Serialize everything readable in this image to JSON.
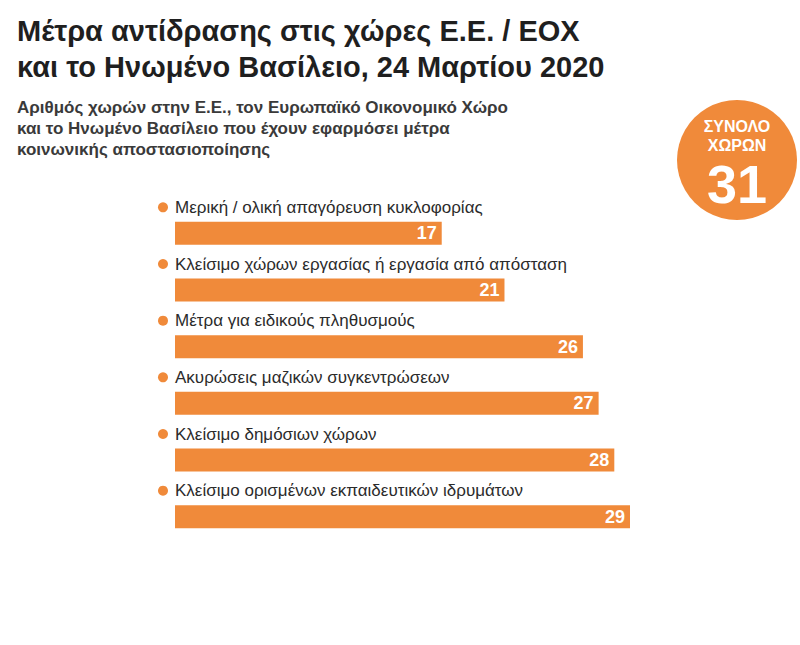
{
  "chart_data": {
    "type": "bar",
    "orientation": "horizontal",
    "title": "Μέτρα αντίδρασης στις χώρες Ε.Ε. / ΕΟΧ\nκαι το Ηνωμένο Βασίλειο, 24 Μαρτίου 2020",
    "subtitle": "Αριθμός χωρών στην Ε.Ε., τον Ευρωπαϊκό Οικονομικό Χώρο\nκαι το Ηνωμένο Βασίλειο που έχουν εφαρμόσει μέτρα\nκοινωνικής αποστασιοποίησης",
    "annotation": {
      "text": "ΣΥΝΟΛΟ ΧΩΡΩΝ",
      "value": 31
    },
    "categories": [
      "Μερική / ολική απαγόρευση κυκλοφορίας",
      "Κλείσιμο χώρων εργασίας ή εργασία από απόσταση",
      "Μέτρα για ειδικούς πληθυσμούς",
      "Ακυρώσεις μαζικών συγκεντρώσεων",
      "Κλείσιμο δημόσιων χώρων",
      "Κλείσιμο ορισμένων εκπαιδευτικών ιδρυμάτων"
    ],
    "values": [
      17,
      21,
      26,
      27,
      28,
      29
    ],
    "color": "#f08a3a",
    "xlim": [
      0,
      29
    ],
    "data_labels": true,
    "tick_labels": false,
    "grid": false
  }
}
